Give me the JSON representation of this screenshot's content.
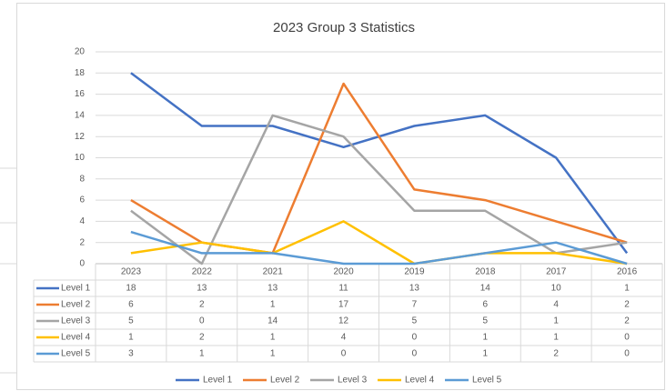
{
  "chart_data": {
    "type": "line",
    "title": "2023 Group 3 Statistics",
    "categories": [
      "2023",
      "2022",
      "2021",
      "2020",
      "2019",
      "2018",
      "2017",
      "2016"
    ],
    "series": [
      {
        "name": "Level 1",
        "color": "#4472c4",
        "values": [
          18,
          13,
          13,
          11,
          13,
          14,
          10,
          1
        ]
      },
      {
        "name": "Level 2",
        "color": "#ed7d31",
        "values": [
          6,
          2,
          1,
          17,
          7,
          6,
          4,
          2
        ]
      },
      {
        "name": "Level 3",
        "color": "#a5a5a5",
        "values": [
          5,
          0,
          14,
          12,
          5,
          5,
          1,
          2
        ]
      },
      {
        "name": "Level 4",
        "color": "#ffc000",
        "values": [
          1,
          2,
          1,
          4,
          0,
          1,
          1,
          0
        ]
      },
      {
        "name": "Level 5",
        "color": "#5b9bd5",
        "values": [
          3,
          1,
          1,
          0,
          0,
          1,
          2,
          0
        ]
      }
    ],
    "ylim": [
      0,
      20
    ],
    "yticks": [
      0,
      2,
      4,
      6,
      8,
      10,
      12,
      14,
      16,
      18,
      20
    ],
    "grid": true,
    "data_table": true,
    "legend": "bottom"
  }
}
